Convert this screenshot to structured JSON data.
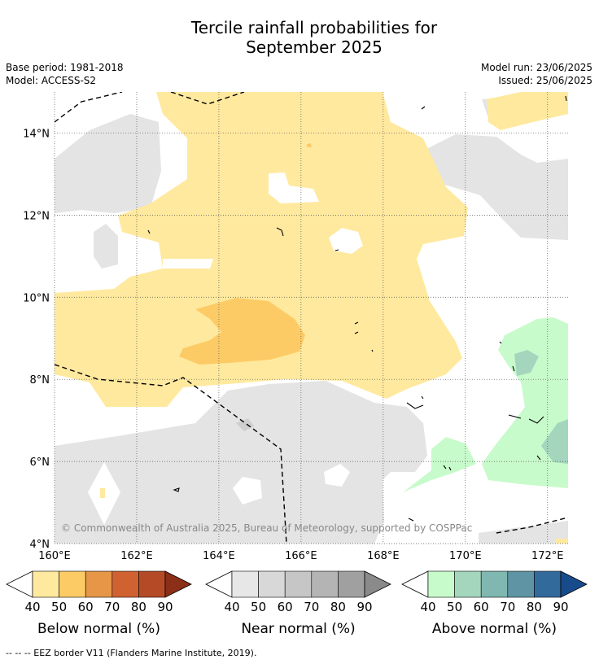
{
  "title_line1": "Tercile rainfall probabilities for",
  "title_line2": "September 2025",
  "base_period": "Base period: 1981-2018",
  "model": "Model: ACCESS-S2",
  "model_run": "Model run: 23/06/2025",
  "issued": "Issued: 25/06/2025",
  "copyright": "© Commonwealth of Australia 2025, Bureau of Meteorology, supported by COSPPac",
  "footnote": "-- -- -- EEZ border V11 (Flanders Marine Institute, 2019).",
  "map": {
    "lon_range": [
      160,
      172.5
    ],
    "lat_range": [
      4,
      15
    ],
    "lat_ticks": [
      {
        "value": 14,
        "label": "14°N"
      },
      {
        "value": 12,
        "label": "12°N"
      },
      {
        "value": 10,
        "label": "10°N"
      },
      {
        "value": 8,
        "label": "8°N"
      },
      {
        "value": 6,
        "label": "6°N"
      },
      {
        "value": 4,
        "label": "4°N"
      }
    ],
    "lon_ticks": [
      {
        "value": 160,
        "label": "160°E"
      },
      {
        "value": 162,
        "label": "162°E"
      },
      {
        "value": 164,
        "label": "164°E"
      },
      {
        "value": 166,
        "label": "166°E"
      },
      {
        "value": 168,
        "label": "168°E"
      },
      {
        "value": 170,
        "label": "170°E"
      },
      {
        "value": 172,
        "label": "172°E"
      }
    ],
    "gridlines": true
  },
  "legends": [
    {
      "title": "Below normal (%)",
      "ticks": [
        "40",
        "50",
        "60",
        "70",
        "80",
        "90"
      ],
      "colors": [
        "#ffe99e",
        "#fdcb66",
        "#e59646",
        "#cf6230",
        "#b44b26",
        "#8b2f17"
      ]
    },
    {
      "title": "Near normal (%)",
      "ticks": [
        "40",
        "50",
        "60",
        "70",
        "80",
        "90"
      ],
      "colors": [
        "#e7e7e7",
        "#d8d8d8",
        "#c6c6c6",
        "#b4b4b4",
        "#a0a0a0",
        "#8a8a8a"
      ]
    },
    {
      "title": "Above normal (%)",
      "ticks": [
        "40",
        "50",
        "60",
        "70",
        "80",
        "90"
      ],
      "colors": [
        "#c8fbcb",
        "#a4d6be",
        "#80b7b0",
        "#5e94a4",
        "#336a9c",
        "#174b8c"
      ]
    }
  ]
}
